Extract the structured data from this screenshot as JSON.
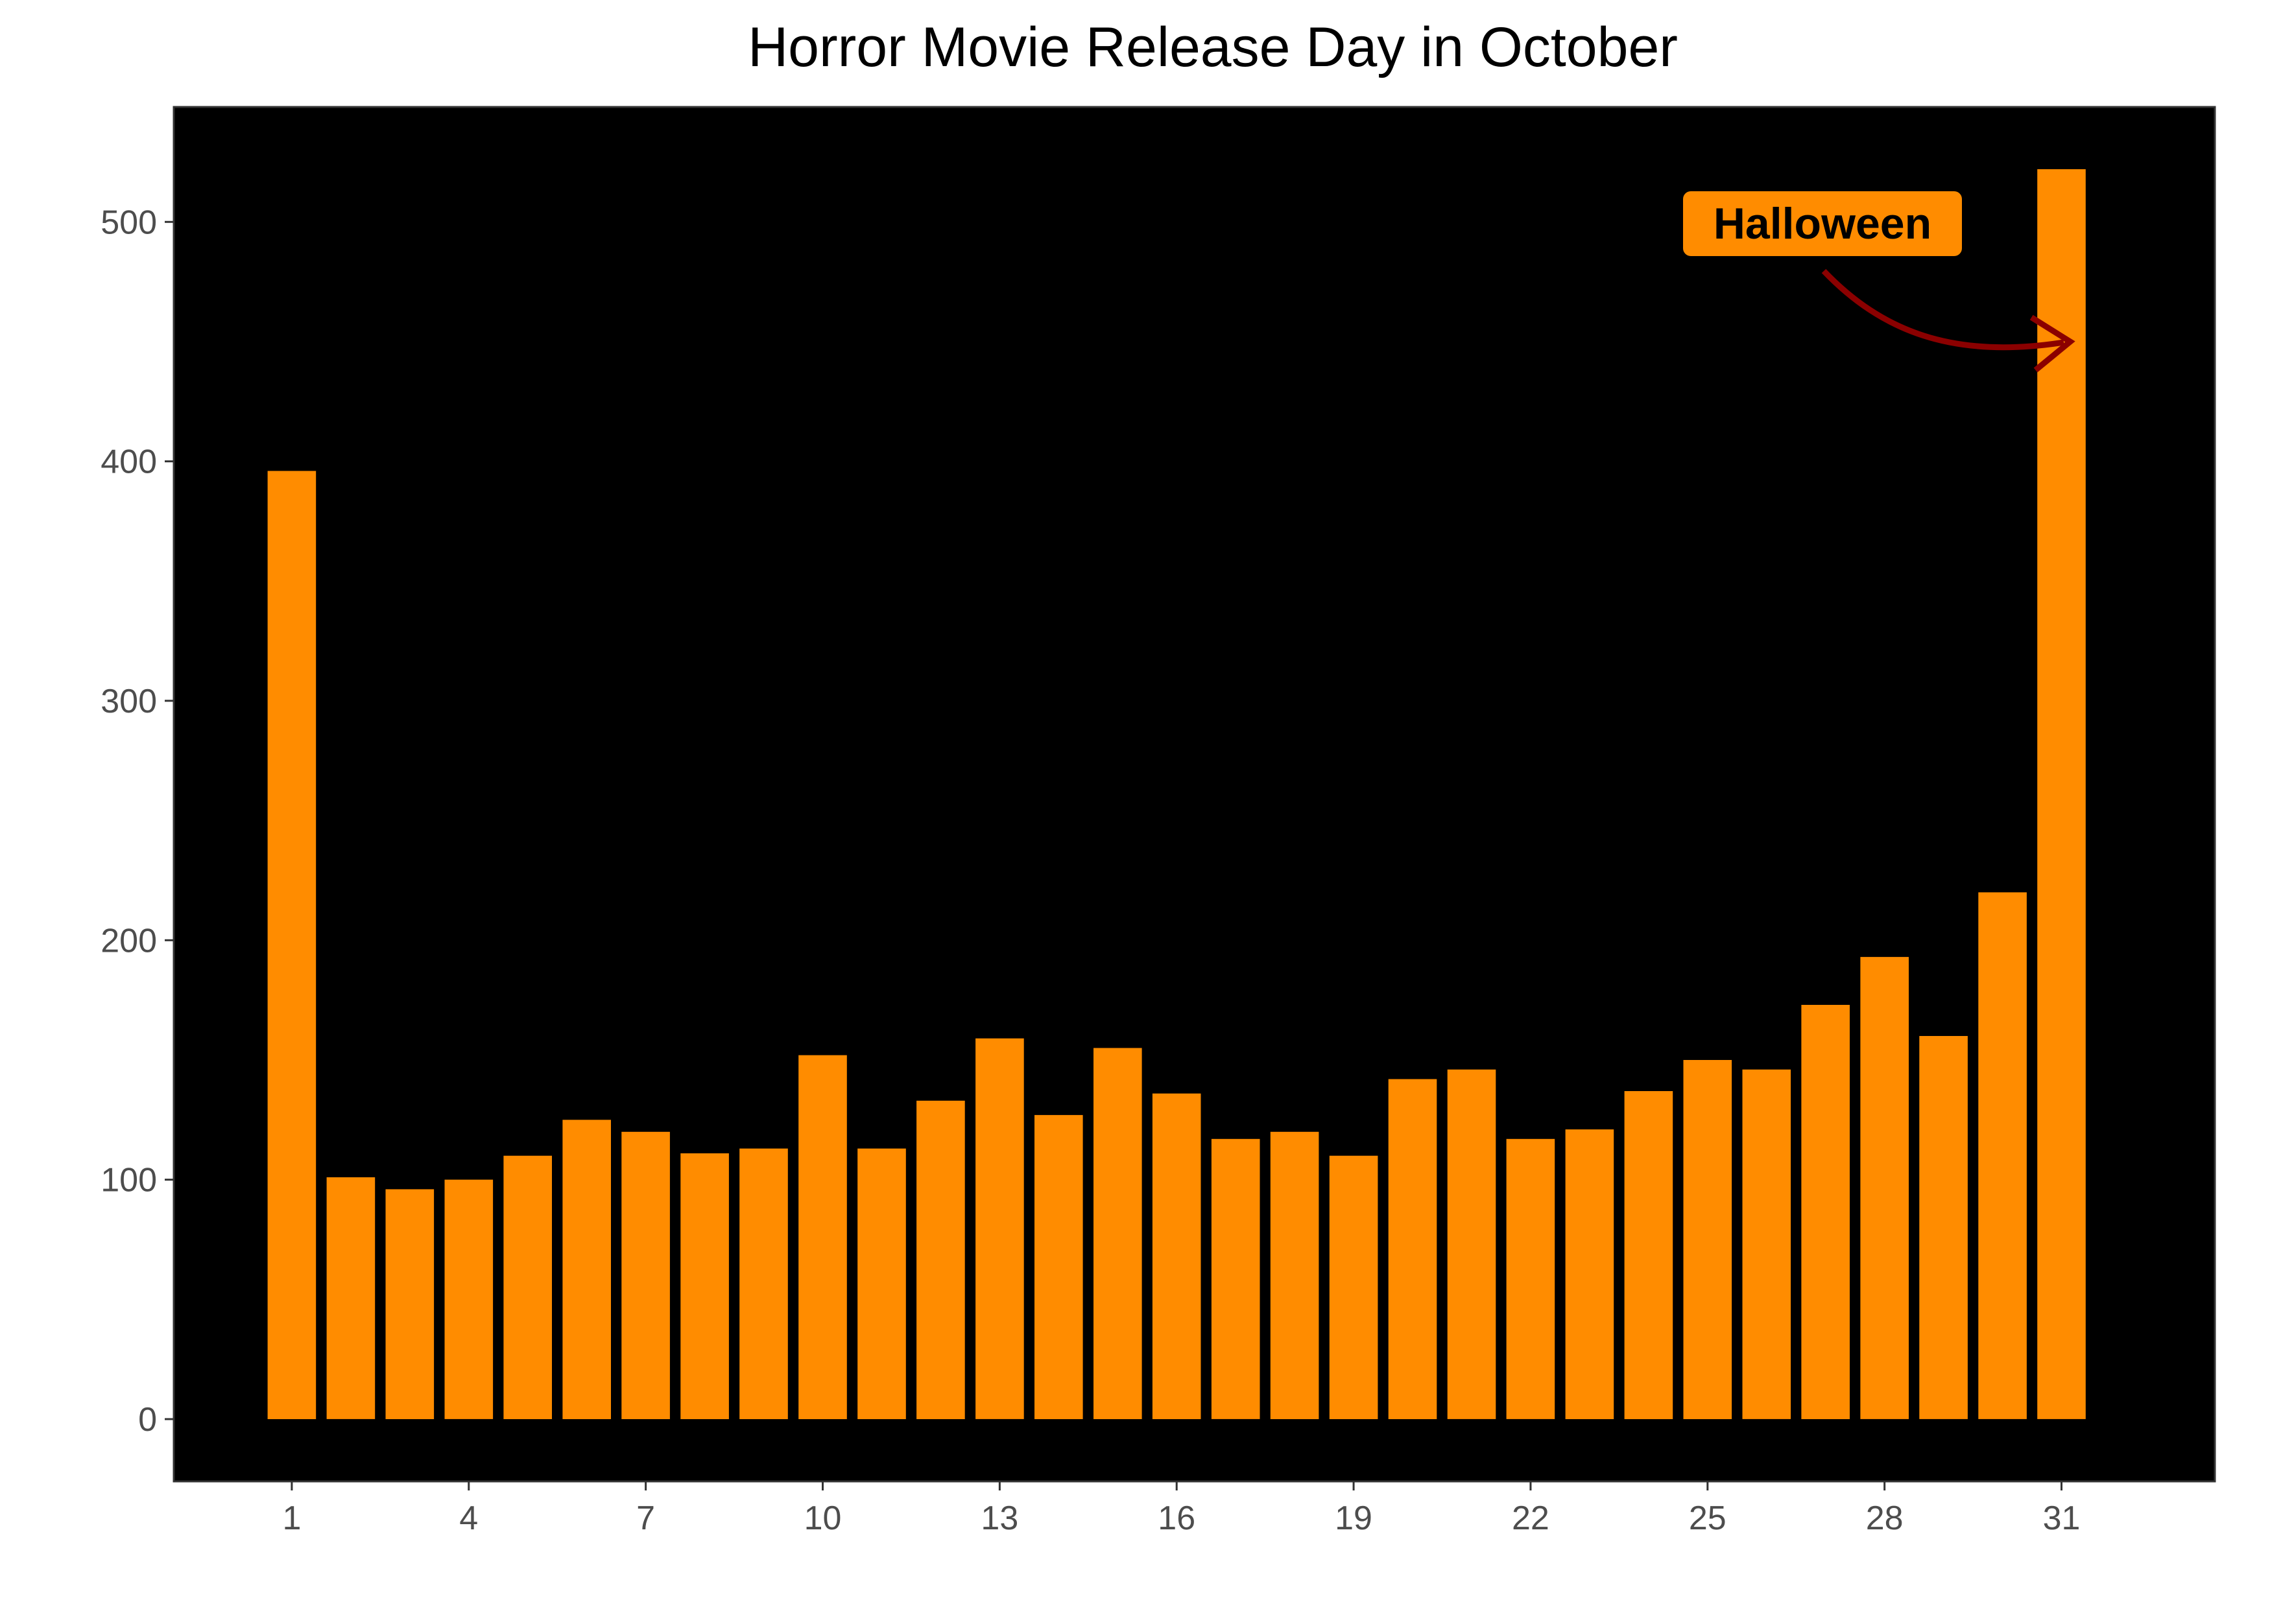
{
  "chart_data": {
    "type": "bar",
    "title": "Horror Movie Release Day in October",
    "xlabel": "",
    "ylabel": "",
    "x": [
      1,
      2,
      3,
      4,
      5,
      6,
      7,
      8,
      9,
      10,
      11,
      12,
      13,
      14,
      15,
      16,
      17,
      18,
      19,
      20,
      21,
      22,
      23,
      24,
      25,
      26,
      27,
      28,
      29,
      30,
      31
    ],
    "values": [
      396,
      101,
      96,
      100,
      110,
      125,
      120,
      111,
      113,
      152,
      113,
      133,
      159,
      127,
      155,
      136,
      117,
      120,
      110,
      142,
      146,
      117,
      121,
      137,
      150,
      146,
      173,
      193,
      160,
      220,
      522
    ],
    "x_tick_labels": [
      "1",
      "4",
      "7",
      "10",
      "13",
      "16",
      "19",
      "22",
      "25",
      "28",
      "31"
    ],
    "y_tick_labels": [
      "0",
      "100",
      "200",
      "300",
      "400",
      "500"
    ],
    "y_ticks": [
      0,
      100,
      200,
      300,
      400,
      500
    ],
    "xlim": [
      -1,
      33.6
    ],
    "ylim": [
      -26,
      548
    ],
    "grid": false,
    "annotation": {
      "text": "Halloween",
      "target_day": 31
    },
    "colors": {
      "bar": "#FF8C00",
      "panel_background": "#000000",
      "arrow": "#8B0000",
      "label_fill": "#FF8C00",
      "tick_label": "#4d4d4d"
    }
  }
}
